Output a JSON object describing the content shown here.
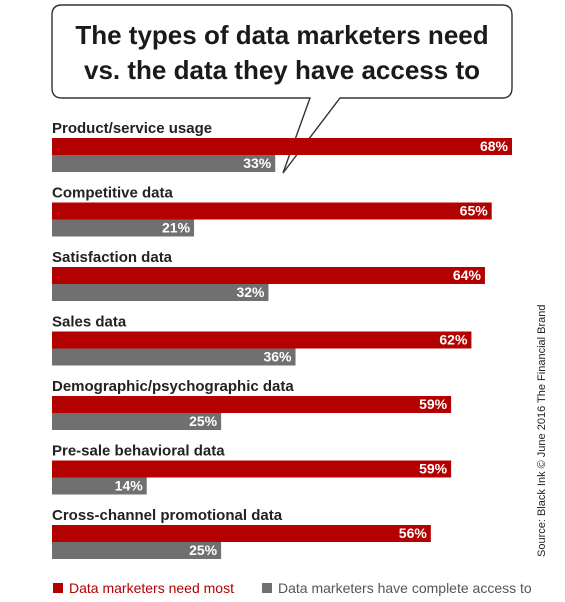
{
  "chart_data": {
    "type": "bar",
    "orientation": "horizontal",
    "title_lines": [
      "The types of data marketers need",
      "vs. the data they have access to"
    ],
    "categories": [
      "Product/service usage",
      "Competitive data",
      "Satisfaction data",
      "Sales data",
      "Demographic/psychographic data",
      "Pre-sale behavioral data",
      "Cross-channel promotional data"
    ],
    "series": [
      {
        "name": "Data marketers need most",
        "color": "#b30000",
        "values": [
          68,
          65,
          64,
          62,
          59,
          59,
          56
        ]
      },
      {
        "name": "Data marketers have complete access to",
        "color": "#707070",
        "values": [
          33,
          21,
          32,
          36,
          25,
          14,
          25
        ]
      }
    ],
    "value_suffix": "%",
    "xlim": [
      0,
      75
    ],
    "grid": false,
    "legend_position": "bottom-left",
    "source": "Source: Black Ink © June 2016 The Financial Brand"
  }
}
